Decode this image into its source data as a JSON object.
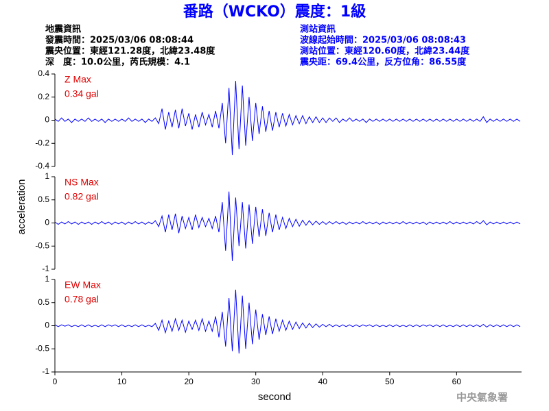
{
  "header": {
    "title": "番路（WCKO）震度：1級",
    "left": [
      "地震資訊",
      "發震時間：2025/03/06 08:08:44",
      "震央位置：東經121.28度，北緯23.48度",
      "深　度：10.0公里，芮氏規模：4.1"
    ],
    "right": [
      "測站資訊",
      "波線起始時間：2025/03/06 08:08:43",
      "測站位置：東經120.60度，北緯23.44度",
      "震央距：69.4公里，反方位角：86.55度"
    ],
    "footer": "中央氣象署"
  },
  "chart_data": {
    "type": "line",
    "xlabel": "second",
    "ylabel": "acceleration",
    "xlim": [
      0,
      69.7
    ],
    "xticks": [
      0,
      10,
      20,
      30,
      40,
      50,
      60
    ],
    "x": [
      0,
      0.5,
      1,
      1.5,
      2,
      2.5,
      3,
      3.5,
      4,
      4.5,
      5,
      5.5,
      6,
      6.5,
      7,
      7.5,
      8,
      8.5,
      9,
      9.5,
      10,
      10.5,
      11,
      11.5,
      12,
      12.5,
      13,
      13.5,
      14,
      14.5,
      15,
      15.5,
      16,
      16.5,
      17,
      17.5,
      18,
      18.5,
      19,
      19.5,
      20,
      20.5,
      21,
      21.5,
      22,
      22.5,
      23,
      23.5,
      24,
      24.5,
      25,
      25.5,
      26,
      26.5,
      27,
      27.5,
      28,
      28.5,
      29,
      29.5,
      30,
      30.5,
      31,
      31.5,
      32,
      32.5,
      33,
      33.5,
      34,
      34.5,
      35,
      35.5,
      36,
      36.5,
      37,
      37.5,
      38,
      38.5,
      39,
      39.5,
      40,
      40.5,
      41,
      41.5,
      42,
      42.5,
      43,
      43.5,
      44,
      44.5,
      45,
      45.5,
      46,
      46.5,
      47,
      47.5,
      48,
      48.5,
      49,
      49.5,
      50,
      50.5,
      51,
      51.5,
      52,
      52.5,
      53,
      53.5,
      54,
      54.5,
      55,
      55.5,
      56,
      56.5,
      57,
      57.5,
      58,
      58.5,
      59,
      59.5,
      60,
      60.5,
      61,
      61.5,
      62,
      62.5,
      63,
      63.5,
      64,
      64.5,
      65,
      65.5,
      66,
      66.5,
      67,
      67.5,
      68,
      68.5,
      69,
      69.5
    ],
    "series": [
      {
        "name": "Z Max",
        "max_label": "0.34 gal",
        "color": "#0000ff",
        "ylim": [
          -0.4,
          0.4
        ],
        "yticks": [
          -0.4,
          -0.2,
          0,
          0.2,
          0.4
        ],
        "values": [
          0.01,
          -0.01,
          0.02,
          -0.01,
          0.01,
          -0.02,
          0.01,
          -0.01,
          0.01,
          -0.01,
          0.02,
          -0.01,
          0.01,
          -0.01,
          0.01,
          -0.02,
          0.01,
          -0.01,
          0.01,
          -0.01,
          0.01,
          -0.01,
          0.02,
          -0.01,
          0.01,
          -0.01,
          0.01,
          -0.02,
          0.01,
          -0.01,
          0.02,
          -0.03,
          0.1,
          -0.08,
          0.07,
          -0.06,
          0.09,
          -0.07,
          0.1,
          -0.05,
          0.06,
          -0.08,
          0.05,
          -0.06,
          0.07,
          -0.04,
          0.05,
          -0.06,
          0.08,
          -0.07,
          0.15,
          -0.2,
          0.28,
          -0.3,
          0.34,
          -0.25,
          0.3,
          -0.22,
          0.2,
          -0.18,
          0.15,
          -0.12,
          0.12,
          -0.1,
          0.08,
          -0.09,
          0.07,
          -0.06,
          0.06,
          -0.05,
          0.05,
          -0.04,
          0.04,
          -0.03,
          0.04,
          -0.03,
          0.03,
          -0.02,
          0.03,
          -0.02,
          0.02,
          -0.02,
          0.02,
          -0.01,
          0.02,
          -0.02,
          0.01,
          -0.01,
          0.02,
          -0.01,
          0.01,
          -0.01,
          0.01,
          -0.02,
          0.01,
          -0.01,
          0.01,
          -0.01,
          0.01,
          -0.01,
          0.01,
          -0.01,
          0.01,
          -0.01,
          0.01,
          -0.01,
          0.01,
          -0.01,
          0.01,
          -0.01,
          0.01,
          -0.01,
          0.01,
          -0.01,
          0.01,
          -0.01,
          0.01,
          -0.01,
          0.01,
          -0.01,
          0.01,
          -0.01,
          0.01,
          -0.01,
          0.01,
          -0.01,
          0.01,
          -0.01,
          0.03,
          -0.02,
          0.01,
          -0.01,
          0.01,
          -0.01,
          0.01,
          -0.01,
          0.01,
          -0.01,
          0.01,
          -0.01
        ]
      },
      {
        "name": "NS Max",
        "max_label": "0.82 gal",
        "color": "#0000ff",
        "ylim": [
          -1,
          1
        ],
        "yticks": [
          -1,
          -0.5,
          0,
          0.5,
          1
        ],
        "values": [
          0.02,
          -0.03,
          0.02,
          -0.02,
          0.03,
          -0.02,
          0.02,
          -0.03,
          0.02,
          -0.02,
          0.02,
          -0.03,
          0.02,
          -0.02,
          0.03,
          -0.02,
          0.02,
          -0.03,
          0.02,
          -0.02,
          0.02,
          -0.03,
          0.02,
          -0.02,
          0.03,
          -0.02,
          0.02,
          -0.03,
          0.02,
          -0.02,
          0.05,
          -0.08,
          0.15,
          -0.2,
          0.18,
          -0.15,
          0.2,
          -0.22,
          0.15,
          -0.12,
          0.12,
          -0.15,
          0.18,
          -0.1,
          0.12,
          -0.08,
          0.1,
          -0.12,
          0.15,
          -0.2,
          0.45,
          -0.6,
          0.68,
          -0.82,
          0.55,
          -0.5,
          0.45,
          -0.55,
          0.4,
          -0.45,
          0.35,
          -0.3,
          0.3,
          -0.28,
          0.22,
          -0.2,
          0.18,
          -0.15,
          0.12,
          -0.12,
          0.1,
          -0.08,
          0.08,
          -0.07,
          0.06,
          -0.05,
          0.05,
          -0.04,
          0.04,
          -0.03,
          0.03,
          -0.03,
          0.03,
          -0.02,
          0.03,
          -0.02,
          0.02,
          -0.03,
          0.02,
          -0.02,
          0.02,
          -0.02,
          0.03,
          -0.02,
          0.02,
          -0.02,
          0.02,
          -0.03,
          0.02,
          -0.02,
          0.02,
          -0.02,
          0.02,
          -0.02,
          0.03,
          -0.02,
          0.02,
          -0.02,
          0.02,
          -0.02,
          0.02,
          -0.03,
          0.02,
          -0.02,
          0.02,
          -0.02,
          0.02,
          -0.02,
          0.03,
          -0.02,
          0.02,
          -0.02,
          0.02,
          -0.02,
          0.02,
          -0.02,
          0.03,
          -0.02,
          0.05,
          -0.04,
          0.02,
          -0.02,
          0.02,
          -0.02,
          0.02,
          -0.02,
          0.02,
          -0.02,
          0.02,
          -0.02
        ]
      },
      {
        "name": "EW Max",
        "max_label": "0.78 gal",
        "color": "#0000ff",
        "ylim": [
          -1,
          1
        ],
        "yticks": [
          -1,
          -0.5,
          0,
          0.5,
          1
        ],
        "values": [
          0.02,
          -0.02,
          0.02,
          -0.01,
          0.02,
          -0.02,
          0.01,
          -0.02,
          0.02,
          -0.02,
          0.02,
          -0.02,
          0.01,
          -0.02,
          0.02,
          -0.02,
          0.02,
          -0.01,
          0.02,
          -0.02,
          0.02,
          -0.02,
          0.01,
          -0.02,
          0.02,
          -0.02,
          0.02,
          -0.02,
          0.01,
          -0.02,
          0.05,
          -0.1,
          0.12,
          -0.15,
          0.1,
          -0.12,
          0.15,
          -0.1,
          0.12,
          -0.14,
          0.1,
          -0.08,
          0.12,
          -0.1,
          0.15,
          -0.12,
          0.1,
          -0.12,
          0.2,
          -0.25,
          0.3,
          -0.45,
          0.6,
          -0.55,
          0.78,
          -0.6,
          0.65,
          -0.5,
          0.5,
          -0.4,
          0.35,
          -0.3,
          0.25,
          -0.2,
          0.2,
          -0.18,
          0.15,
          -0.12,
          0.12,
          -0.1,
          0.1,
          -0.08,
          0.08,
          -0.06,
          0.06,
          -0.05,
          0.05,
          -0.04,
          0.04,
          -0.03,
          0.03,
          -0.02,
          0.03,
          -0.02,
          0.02,
          -0.02,
          0.02,
          -0.02,
          0.02,
          -0.02,
          0.02,
          -0.02,
          0.02,
          -0.01,
          0.02,
          -0.02,
          0.02,
          -0.02,
          0.01,
          -0.02,
          0.02,
          -0.02,
          0.02,
          -0.02,
          0.01,
          -0.02,
          0.02,
          -0.02,
          0.02,
          -0.02,
          0.02,
          -0.01,
          0.02,
          -0.02,
          0.02,
          -0.02,
          0.02,
          -0.02,
          0.01,
          -0.02,
          0.02,
          -0.02,
          0.02,
          -0.02,
          0.02,
          -0.02,
          0.02,
          -0.02,
          0.03,
          -0.03,
          0.02,
          -0.02,
          0.02,
          -0.02,
          0.02,
          -0.02,
          0.02,
          -0.02,
          0.02,
          -0.02
        ]
      }
    ]
  }
}
